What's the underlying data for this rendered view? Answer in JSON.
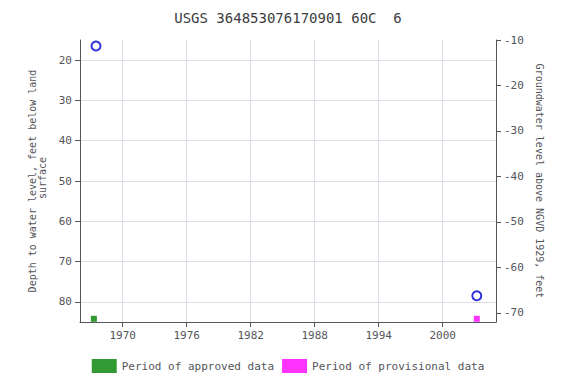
{
  "chart_data": {
    "type": "scatter",
    "title": "USGS 364853076170901 60C  6",
    "ylabel": "Depth to water level, feet below land\n surface",
    "y2label": "Groundwater level above NGVD 1929, feet",
    "xlim": [
      1966.0,
      2005.0
    ],
    "xticks": [
      1970,
      1976,
      1982,
      1988,
      1994,
      2000
    ],
    "ylim": [
      85.0,
      15.0
    ],
    "yticks": [
      20,
      30,
      40,
      50,
      60,
      70,
      80
    ],
    "y2lim": [
      -72.0,
      -10.0
    ],
    "y2ticks": [
      -10,
      -20,
      -30,
      -40,
      -50,
      -60,
      -70
    ],
    "grid": true,
    "legend": "bottom",
    "series": [
      {
        "color": "#0000cc",
        "marker": "circle",
        "x": [
          1967.5,
          2003.2
        ],
        "values": [
          16.5,
          78.5
        ]
      },
      {
        "name": "Period of approved data",
        "color": "#008000",
        "marker": "square",
        "x": [
          1967.3
        ],
        "values": [
          84.2
        ]
      },
      {
        "name": "Period of provisional data",
        "color": "#ff00ff",
        "marker": "square",
        "x": [
          2003.2
        ],
        "values": [
          84.2
        ]
      }
    ]
  }
}
